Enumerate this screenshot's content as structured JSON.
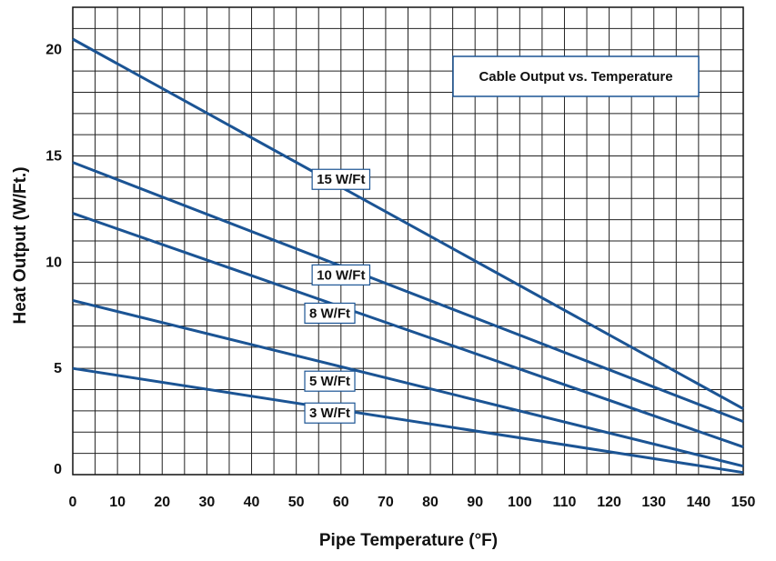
{
  "chart_data": {
    "type": "line",
    "title": "Cable Output vs. Temperature",
    "xlabel": "Pipe Temperature (°F)",
    "ylabel": "Heat Output (W/Ft.)",
    "xlim": [
      0,
      150
    ],
    "ylim": [
      0,
      22
    ],
    "x_ticks": [
      "0",
      "10",
      "20",
      "30",
      "40",
      "50",
      "60",
      "70",
      "80",
      "90",
      "100",
      "110",
      "120",
      "130",
      "140",
      "150"
    ],
    "y_ticks": [
      {
        "value": 0,
        "label": "0"
      },
      {
        "value": 5,
        "label": "5"
      },
      {
        "value": 10,
        "label": "10"
      },
      {
        "value": 15,
        "label": "15"
      },
      {
        "value": 20,
        "label": "20"
      }
    ],
    "grid": true,
    "line_color": "#1b5494",
    "series": [
      {
        "name": "15 W/Ft",
        "x": [
          0,
          150
        ],
        "y": [
          20.5,
          3.1
        ],
        "label_x": 60,
        "label_y": 13.9
      },
      {
        "name": "10 W/Ft",
        "x": [
          0,
          150
        ],
        "y": [
          14.7,
          2.5
        ],
        "label_x": 60,
        "label_y": 9.4
      },
      {
        "name": "8 W/Ft",
        "x": [
          0,
          150
        ],
        "y": [
          12.3,
          1.3
        ],
        "label_x": 57.5,
        "label_y": 7.6
      },
      {
        "name": "5 W/Ft",
        "x": [
          0,
          150
        ],
        "y": [
          8.2,
          0.4
        ],
        "label_x": 57.5,
        "label_y": 4.4
      },
      {
        "name": "3 W/Ft",
        "x": [
          0,
          150
        ],
        "y": [
          5.0,
          0.1
        ],
        "label_x": 57.5,
        "label_y": 2.9
      }
    ]
  }
}
